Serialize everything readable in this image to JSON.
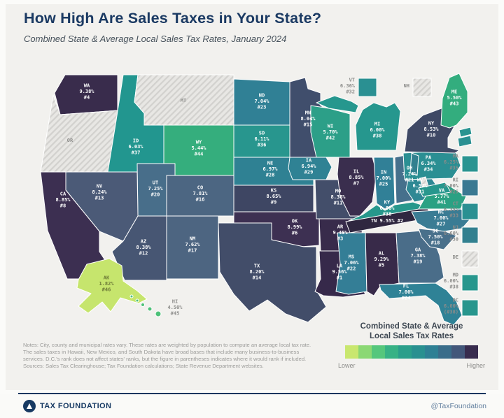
{
  "header": {
    "title": "How High Are Sales Taxes in Your State?",
    "subtitle": "Combined State & Average Local Sales Tax Rates, January 2024"
  },
  "chart_data": {
    "type": "heatmap",
    "subtype": "us-choropleth-map",
    "title": "Combined State & Average Local Sales Tax Rates, January 2024",
    "value_unit": "percent combined state + average local sales tax rate",
    "no_tax_note": "Hatched gray states (OR, MT, NH, DE) have no state or local general sales tax",
    "states": [
      {
        "abbr": "WA",
        "rate": "9.38%",
        "rank": "#4",
        "color": "#392c4c"
      },
      {
        "abbr": "OR",
        "rate": null,
        "rank": null,
        "color": null,
        "text_color": "#8f8f8d"
      },
      {
        "abbr": "CA",
        "rate": "8.85%",
        "rank": "#8",
        "color": "#3c2f51"
      },
      {
        "abbr": "NV",
        "rate": "8.24%",
        "rank": "#13",
        "color": "#4b5a77"
      },
      {
        "abbr": "ID",
        "rate": "6.03%",
        "rank": "#37",
        "color": "#22968f"
      },
      {
        "abbr": "MT",
        "rate": null,
        "rank": null,
        "color": null,
        "text_color": "#8f8f8d"
      },
      {
        "abbr": "WY",
        "rate": "5.44%",
        "rank": "#44",
        "color": "#35ae7d"
      },
      {
        "abbr": "UT",
        "rate": "7.25%",
        "rank": "#20",
        "color": "#486e8a"
      },
      {
        "abbr": "CO",
        "rate": "7.81%",
        "rank": "#16",
        "color": "#4c6682"
      },
      {
        "abbr": "AZ",
        "rate": "8.38%",
        "rank": "#12",
        "color": "#475673"
      },
      {
        "abbr": "NM",
        "rate": "7.62%",
        "rank": "#17",
        "color": "#4d6581"
      },
      {
        "abbr": "ND",
        "rate": "7.04%",
        "rank": "#23",
        "color": "#308095"
      },
      {
        "abbr": "SD",
        "rate": "6.11%",
        "rank": "#36",
        "color": "#28968e"
      },
      {
        "abbr": "NE",
        "rate": "6.97%",
        "rank": "#28",
        "color": "#2f8193"
      },
      {
        "abbr": "KS",
        "rate": "8.65%",
        "rank": "#9",
        "color": "#3e4663"
      },
      {
        "abbr": "OK",
        "rate": "8.99%",
        "rank": "#6",
        "color": "#3d3052"
      },
      {
        "abbr": "TX",
        "rate": "8.20%",
        "rank": "#14",
        "color": "#424d69"
      },
      {
        "abbr": "MN",
        "rate": "8.04%",
        "rank": "#15",
        "color": "#404e6c"
      },
      {
        "abbr": "IA",
        "rate": "6.94%",
        "rank": "#29",
        "color": "#2f8294"
      },
      {
        "abbr": "MO",
        "rate": "8.38%",
        "rank": "#11",
        "color": "#434e6a"
      },
      {
        "abbr": "AR",
        "rate": "9.45%",
        "rank": "#3",
        "color": "#382b4b"
      },
      {
        "abbr": "LA",
        "rate": "9.56%",
        "rank": "#1",
        "color": "#36294a"
      },
      {
        "abbr": "WI",
        "rate": "5.70%",
        "rank": "#42",
        "color": "#2c9f88"
      },
      {
        "abbr": "IL",
        "rate": "8.85%",
        "rank": "#7",
        "color": "#3a2e4e"
      },
      {
        "abbr": "MS",
        "rate": "7.06%",
        "rank": "#22",
        "color": "#347e96"
      },
      {
        "abbr": "MI",
        "rate": "6.00%",
        "rank": "#38",
        "color": "#26978e"
      },
      {
        "abbr": "IN",
        "rate": "7.00%",
        "rank": "#25",
        "color": "#318097"
      },
      {
        "abbr": "OH",
        "rate": "7.24%",
        "rank": "#21",
        "color": "#46708c"
      },
      {
        "abbr": "KY",
        "rate": "6.00%",
        "rank": "#38",
        "color": "#27988c"
      },
      {
        "abbr": "TN",
        "rate": "9.55%",
        "rank": "#2",
        "color": "#2f2740"
      },
      {
        "abbr": "AL",
        "rate": "9.29%",
        "rank": "#5",
        "color": "#382a49"
      },
      {
        "abbr": "GA",
        "rate": "7.38%",
        "rank": "#19",
        "color": "#4a6d89"
      },
      {
        "abbr": "FL",
        "rate": "7.00%",
        "rank": "#24",
        "color": "#2f8296"
      },
      {
        "abbr": "WV",
        "rate": "6.57%",
        "rank": "#31",
        "color": "#2f8894"
      },
      {
        "abbr": "VA",
        "rate": "5.77%",
        "rank": "#41",
        "color": "#2ba183"
      },
      {
        "abbr": "NC",
        "rate": "7.00%",
        "rank": "#27",
        "color": "#3a7c94"
      },
      {
        "abbr": "SC",
        "rate": "7.50%",
        "rank": "#18",
        "color": "#49708b"
      },
      {
        "abbr": "PA",
        "rate": "6.34%",
        "rank": "#34",
        "color": "#2b8f93"
      },
      {
        "abbr": "NY",
        "rate": "8.53%",
        "rank": "#10",
        "color": "#3f4965"
      },
      {
        "abbr": "ME",
        "rate": "5.50%",
        "rank": "#43",
        "color": "#33ad7e"
      },
      {
        "abbr": "VT",
        "rate": "6.36%",
        "rank": "#32",
        "color": "#2a9092",
        "text_color": "#8c8c8a"
      },
      {
        "abbr": "NH",
        "rate": null,
        "rank": null,
        "color": null,
        "text_color": "#8c8c8a"
      },
      {
        "abbr": "MA",
        "rate": "6.25%",
        "rank": "#35",
        "color": "#2a9491",
        "text_color": "#8c8c8a"
      },
      {
        "abbr": "RI",
        "rate": "7.00%",
        "rank": "#25",
        "color": "#3a7992",
        "text_color": "#8c8c8a"
      },
      {
        "abbr": "CT",
        "rate": "6.35%",
        "rank": "#33",
        "color": "#2a9092",
        "text_color": "#8c8c8a"
      },
      {
        "abbr": "NJ",
        "rate": "6.60%",
        "rank": "#30",
        "color": "#32808f",
        "text_color": "#8c8c8a"
      },
      {
        "abbr": "DE",
        "rate": null,
        "rank": null,
        "color": null,
        "text_color": "#8c8c8a"
      },
      {
        "abbr": "MD",
        "rate": "6.00%",
        "rank": "#38",
        "color": "#27978d",
        "text_color": "#8c8c8a"
      },
      {
        "abbr": "DC",
        "rate": "6.00%",
        "rank": "(#38)",
        "color": "#28968d",
        "text_color": "#8c8c8a"
      },
      {
        "abbr": "AK",
        "rate": "1.82%",
        "rank": "#46",
        "color": "#c6e56d",
        "text_color": "#6a7736"
      },
      {
        "abbr": "HI",
        "rate": "4.50%",
        "rank": "#45",
        "color": "#4ec179",
        "text_color": "#8c8c8a"
      }
    ],
    "legend": {
      "title_line1": "Combined State & Average",
      "title_line2": "Local Sales Tax Rates",
      "lower_label": "Lower",
      "higher_label": "Higher",
      "colors": [
        "#c9e76f",
        "#8bd874",
        "#55c77c",
        "#37b285",
        "#2b9f8b",
        "#299090",
        "#2e8094",
        "#3a6d8a",
        "#43577a",
        "#382c4e"
      ]
    }
  },
  "notes": "Notes: City, county and municipal rates vary. These rates are weighted by population to compute an average local tax rate. The sales taxes in Hawaii, New Mexico, and South Dakota have broad bases that include many business-to-business services. D.C.'s rank does not affect states' ranks, but the figure in parentheses indicates where it would rank if included. Sources: Sales Tax Clearinghouse; Tax Foundation calculations; State Revenue Department websites.",
  "footer": {
    "brand": "TAX FOUNDATION",
    "handle": "@TaxFoundation"
  }
}
